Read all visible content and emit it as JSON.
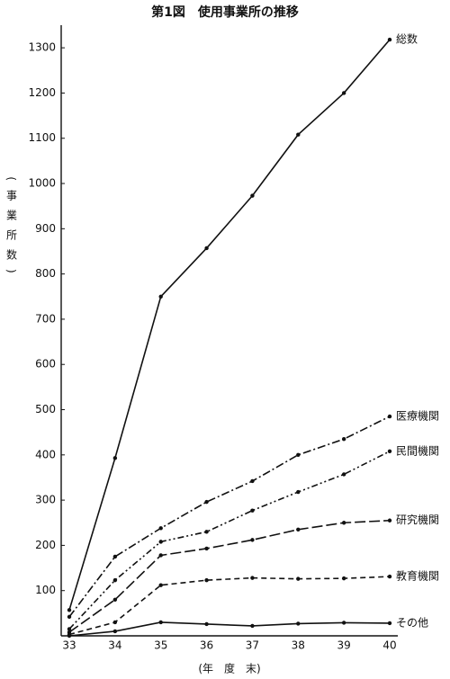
{
  "chart_data": {
    "type": "line",
    "title": "第1図　使用事業所の推移",
    "y_label": "(事業所数)",
    "x_label": "(年　度　末)",
    "categories": [
      "33",
      "34",
      "35",
      "36",
      "37",
      "38",
      "39",
      "40"
    ],
    "ylim": [
      0,
      1350
    ],
    "yticks": [
      100,
      200,
      300,
      400,
      500,
      600,
      700,
      800,
      900,
      1000,
      1100,
      1200,
      1300
    ],
    "series": [
      {
        "name": "総数",
        "color": "#111111",
        "dash": "none",
        "values": [
          57,
          393,
          750,
          857,
          973,
          1108,
          1200,
          1318
        ]
      },
      {
        "name": "医療機関",
        "color": "#111111",
        "dash": "9 3 2 3",
        "values": [
          42,
          175,
          238,
          296,
          342,
          400,
          435,
          485
        ]
      },
      {
        "name": "民間機関",
        "color": "#111111",
        "dash": "7 3 2 3 2 3",
        "values": [
          15,
          123,
          208,
          230,
          277,
          318,
          357,
          408
        ]
      },
      {
        "name": "研究機関",
        "color": "#111111",
        "dash": "12 4",
        "values": [
          8,
          80,
          178,
          193,
          212,
          235,
          250,
          255
        ]
      },
      {
        "name": "教育機関",
        "color": "#111111",
        "dash": "6 4",
        "values": [
          3,
          30,
          112,
          123,
          128,
          126,
          127,
          131
        ]
      },
      {
        "name": "その他",
        "color": "#111111",
        "dash": "none",
        "values": [
          0,
          10,
          30,
          26,
          22,
          27,
          29,
          28
        ]
      }
    ]
  }
}
